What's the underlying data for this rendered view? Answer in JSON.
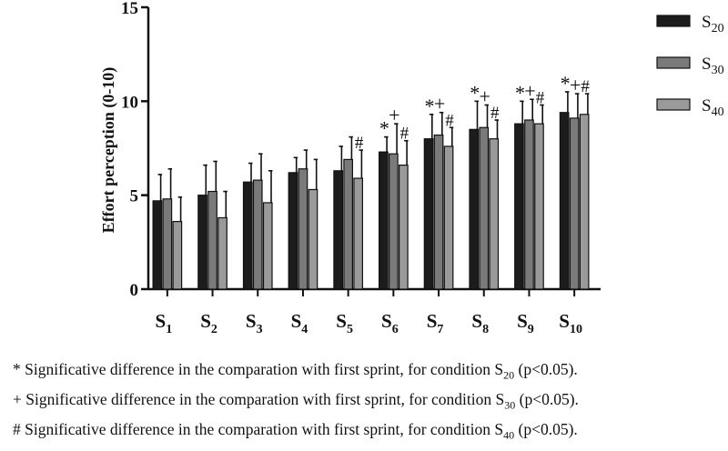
{
  "chart_data": {
    "type": "bar",
    "ylabel": "Effort perception (0-10)",
    "ylim": [
      0,
      15
    ],
    "yticks": [
      "0",
      "5",
      "10",
      "15"
    ],
    "categories": [
      {
        "main": "S",
        "sub": "1"
      },
      {
        "main": "S",
        "sub": "2"
      },
      {
        "main": "S",
        "sub": "3"
      },
      {
        "main": "S",
        "sub": "4"
      },
      {
        "main": "S",
        "sub": "5"
      },
      {
        "main": "S",
        "sub": "6"
      },
      {
        "main": "S",
        "sub": "7"
      },
      {
        "main": "S",
        "sub": "8"
      },
      {
        "main": "S",
        "sub": "9"
      },
      {
        "main": "S",
        "sub": "10"
      }
    ],
    "series": [
      {
        "name_main": "S",
        "name_sub": "20",
        "color": "#1c1c1c",
        "values": [
          4.7,
          5.0,
          5.7,
          6.2,
          6.3,
          7.3,
          8.0,
          8.5,
          8.8,
          9.4
        ],
        "errors": [
          1.4,
          1.6,
          1.0,
          0.8,
          1.3,
          0.8,
          1.3,
          1.5,
          1.2,
          1.1
        ],
        "sig": [
          false,
          false,
          false,
          false,
          false,
          true,
          true,
          true,
          true,
          true
        ]
      },
      {
        "name_main": "S",
        "name_sub": "30",
        "color": "#7a7a7a",
        "values": [
          4.8,
          5.2,
          5.8,
          6.4,
          6.9,
          7.2,
          8.2,
          8.6,
          9.0,
          9.1
        ],
        "errors": [
          1.6,
          1.6,
          1.4,
          1.0,
          1.2,
          1.6,
          1.2,
          1.2,
          1.1,
          1.3
        ],
        "sig": [
          false,
          false,
          false,
          false,
          false,
          true,
          true,
          true,
          true,
          true
        ]
      },
      {
        "name_main": "S",
        "name_sub": "40",
        "color": "#9a9a9a",
        "values": [
          3.6,
          3.8,
          4.6,
          5.3,
          5.9,
          6.6,
          7.6,
          8.0,
          8.8,
          9.3
        ],
        "errors": [
          1.3,
          1.4,
          1.7,
          1.6,
          1.5,
          1.3,
          1.0,
          1.0,
          1.0,
          1.1
        ],
        "sig": [
          false,
          false,
          false,
          false,
          true,
          true,
          true,
          true,
          true,
          true
        ]
      }
    ],
    "sig_markers": [
      "*",
      "+",
      "#"
    ],
    "legend_position": "top-right"
  },
  "notes": [
    {
      "pre": "* Significative difference in the comparation with first sprint, for condition S",
      "sub": "20",
      "post": " (p<0.05)."
    },
    {
      "pre": "+ Significative difference in the comparation with first sprint, for condition S",
      "sub": "30",
      "post": " (p<0.05)."
    },
    {
      "pre": "# Significative difference in the comparation with first sprint, for condition S",
      "sub": "40",
      "post": " (p<0.05)."
    }
  ]
}
